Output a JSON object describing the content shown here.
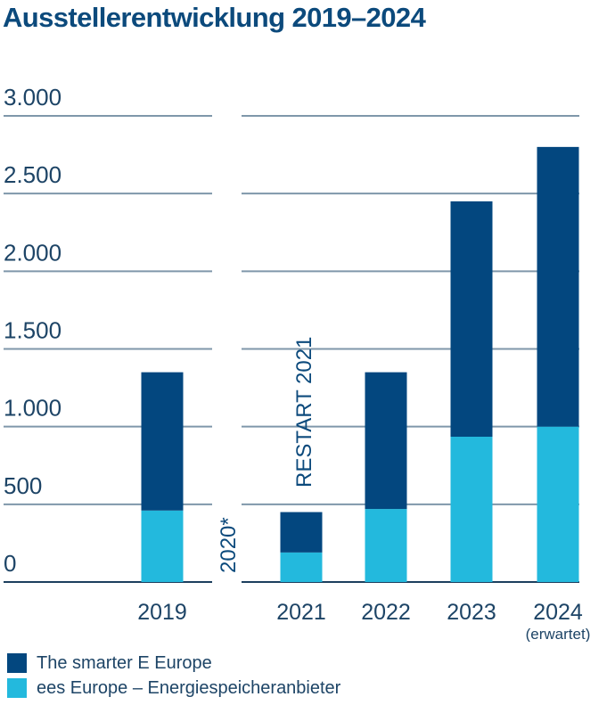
{
  "chart_data": {
    "type": "bar",
    "stacked": true,
    "title": "Ausstellerentwicklung 2019–2024",
    "xlabel": "",
    "ylabel": "",
    "ylim": [
      0,
      3000
    ],
    "yticks": [
      {
        "value": 0,
        "label": "0"
      },
      {
        "value": 500,
        "label": "500"
      },
      {
        "value": 1000,
        "label": "1.000"
      },
      {
        "value": 1500,
        "label": "1.500"
      },
      {
        "value": 2000,
        "label": "2.000"
      },
      {
        "value": 2500,
        "label": "2.500"
      },
      {
        "value": 3000,
        "label": "3.000"
      }
    ],
    "grid": true,
    "categories": [
      {
        "label": "2019",
        "sublabel": ""
      },
      {
        "label": "2021",
        "sublabel": ""
      },
      {
        "label": "2022",
        "sublabel": ""
      },
      {
        "label": "2023",
        "sublabel": ""
      },
      {
        "label": "2024",
        "sublabel": "(erwartet)"
      }
    ],
    "series": [
      {
        "name": "ees Europe – Energiespeicheranbieter",
        "color": "#23b9dd",
        "values": [
          460,
          190,
          470,
          935,
          1000
        ]
      },
      {
        "name": "The smarter E Europe",
        "color": "#03477f",
        "values": [
          890,
          260,
          880,
          1515,
          1800
        ]
      }
    ],
    "annotations": [
      {
        "text": "2020*",
        "orientation": "vertical"
      },
      {
        "text": "RESTART 2021",
        "orientation": "vertical"
      }
    ],
    "legend": {
      "placement": "bottom-left",
      "entries": [
        {
          "label": "The smarter E Europe",
          "color": "#03477f"
        },
        {
          "label": "ees Europe – Energiespeicheranbieter",
          "color": "#23b9dd"
        }
      ]
    },
    "colors": {
      "grid": "#7f97aa",
      "baseline": "#1c3f5e",
      "text": "#1d4466",
      "title": "#0c4a7c"
    }
  }
}
